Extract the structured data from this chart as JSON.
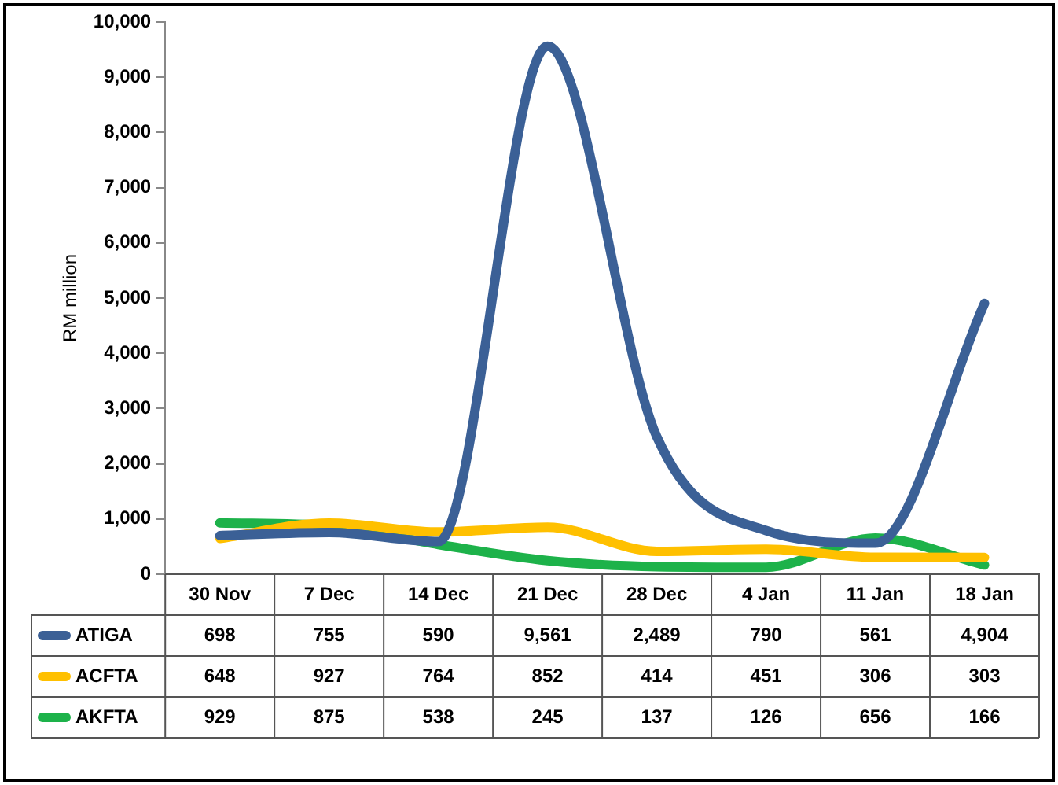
{
  "chart_data": {
    "type": "line",
    "ylabel": "RM million",
    "categories": [
      "30 Nov",
      "7 Dec",
      "14 Dec",
      "21 Dec",
      "28 Dec",
      "4 Jan",
      "11 Jan",
      "18 Jan"
    ],
    "series": [
      {
        "name": "ATIGA",
        "color": "#3b6096",
        "values": [
          698,
          755,
          590,
          9561,
          2489,
          790,
          561,
          4904
        ],
        "value_labels": [
          "698",
          "755",
          "590",
          "9,561",
          "2,489",
          "790",
          "561",
          "4,904"
        ]
      },
      {
        "name": "ACFTA",
        "color": "#ffc000",
        "values": [
          648,
          927,
          764,
          852,
          414,
          451,
          306,
          303
        ],
        "value_labels": [
          "648",
          "927",
          "764",
          "852",
          "414",
          "451",
          "306",
          "303"
        ]
      },
      {
        "name": "AKFTA",
        "color": "#1db24a",
        "values": [
          929,
          875,
          538,
          245,
          137,
          126,
          656,
          166
        ],
        "value_labels": [
          "929",
          "875",
          "538",
          "245",
          "137",
          "126",
          "656",
          "166"
        ]
      }
    ],
    "ylim": [
      0,
      10000
    ],
    "yticks": [
      0,
      {
        "value": 1000,
        "label": "1,000"
      },
      {
        "value": 2000,
        "label": "2,000"
      },
      {
        "value": 3000,
        "label": "3,000"
      },
      {
        "value": 4000,
        "label": "4,000"
      },
      {
        "value": 5000,
        "label": "5,000"
      },
      {
        "value": 6000,
        "label": "6,000"
      },
      {
        "value": 7000,
        "label": "7,000"
      },
      {
        "value": 8000,
        "label": "8,000"
      },
      {
        "value": 9000,
        "label": "9,000"
      },
      {
        "value": 10000,
        "label": "10,000"
      }
    ],
    "grid": false,
    "legend": "bottom",
    "marker": "none",
    "line_style": "solid"
  }
}
